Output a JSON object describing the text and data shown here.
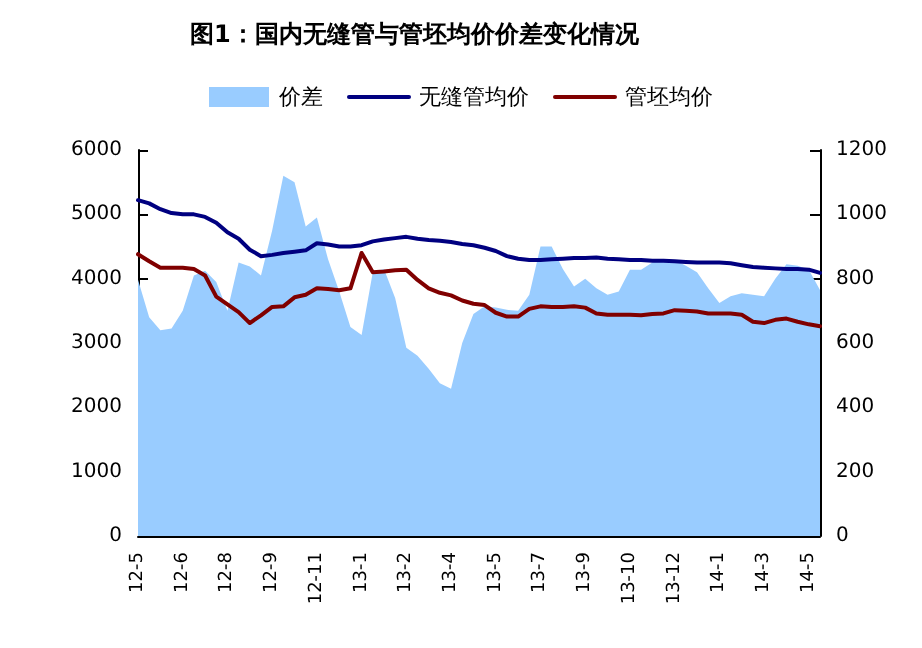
{
  "chart_data": {
    "type": "area",
    "title": "图1：国内无缝管与管坯均价价差变化情况",
    "categories": [
      "12-5",
      null,
      null,
      null,
      "12-6",
      null,
      null,
      null,
      "12-8",
      null,
      null,
      null,
      "12-9",
      null,
      null,
      null,
      "12-11",
      null,
      null,
      null,
      "13-1",
      null,
      null,
      null,
      "13-2",
      null,
      null,
      null,
      "13-4",
      null,
      null,
      null,
      "13-5",
      null,
      null,
      null,
      "13-7",
      null,
      null,
      null,
      "13-9",
      null,
      null,
      null,
      "13-10",
      null,
      null,
      null,
      "13-12",
      null,
      null,
      null,
      "14-1",
      null,
      null,
      null,
      "14-3",
      null,
      null,
      null,
      "14-5",
      null
    ],
    "series": [
      {
        "name": "价差",
        "axis": "y2",
        "color": "#99ccff",
        "values": [
          797,
          680,
          640,
          645,
          700,
          810,
          825,
          790,
          700,
          850,
          838,
          810,
          950,
          1120,
          1100,
          962,
          990,
          860,
          760,
          650,
          625,
          820,
          830,
          740,
          585,
          560,
          520,
          475,
          458,
          600,
          690,
          714,
          710,
          703,
          700,
          750,
          900,
          900,
          830,
          776,
          800,
          770,
          750,
          760,
          828,
          828,
          850,
          858,
          858,
          840,
          820,
          770,
          724,
          745,
          755,
          750,
          745,
          800,
          845,
          840,
          828,
          765
        ]
      },
      {
        "name": "无缝管均价",
        "type": "line",
        "color": "#000080",
        "values": [
          5220,
          5170,
          5080,
          5020,
          5000,
          5000,
          4960,
          4870,
          4720,
          4620,
          4450,
          4350,
          4370,
          4400,
          4420,
          4440,
          4550,
          4530,
          4500,
          4500,
          4520,
          4580,
          4610,
          4630,
          4650,
          4620,
          4600,
          4590,
          4570,
          4540,
          4520,
          4480,
          4430,
          4350,
          4310,
          4290,
          4290,
          4300,
          4310,
          4320,
          4320,
          4330,
          4310,
          4300,
          4290,
          4290,
          4280,
          4280,
          4270,
          4260,
          4250,
          4250,
          4250,
          4240,
          4210,
          4180,
          4170,
          4160,
          4150,
          4150,
          4140,
          4090
        ]
      },
      {
        "name": "管坯均价",
        "type": "line",
        "color": "#800000",
        "values": [
          4380,
          4270,
          4170,
          4170,
          4170,
          4150,
          4050,
          3720,
          3600,
          3480,
          3310,
          3430,
          3560,
          3570,
          3710,
          3750,
          3850,
          3840,
          3820,
          3850,
          4400,
          4100,
          4110,
          4130,
          4140,
          3980,
          3850,
          3780,
          3740,
          3660,
          3610,
          3590,
          3470,
          3410,
          3410,
          3530,
          3570,
          3560,
          3560,
          3570,
          3550,
          3460,
          3440,
          3440,
          3440,
          3430,
          3450,
          3460,
          3510,
          3500,
          3490,
          3460,
          3460,
          3460,
          3440,
          3330,
          3310,
          3360,
          3380,
          3330,
          3290,
          3260
        ]
      }
    ],
    "ylim": [
      0,
      6000
    ],
    "yticks": [
      0,
      1000,
      2000,
      3000,
      4000,
      5000,
      6000
    ],
    "y2lim": [
      0,
      1200
    ],
    "y2ticks": [
      0,
      200,
      400,
      600,
      800,
      1000,
      1200
    ],
    "legend": "top",
    "marker": "none",
    "line_style": "solid"
  }
}
